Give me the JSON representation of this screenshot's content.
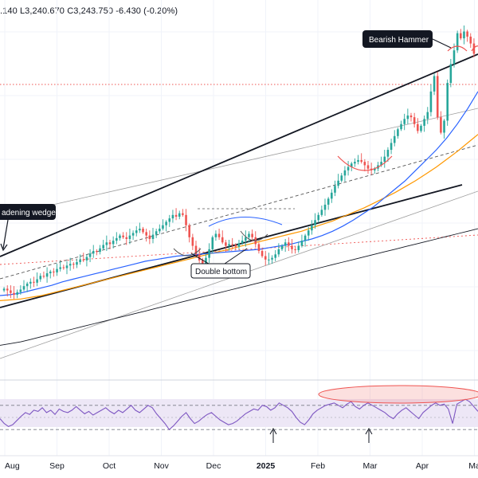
{
  "ohlc_header": {
    "high_fragment": ".140",
    "low": "L3,240.670",
    "close": "C3,243.750",
    "change": "-6.430 (-0.20%)"
  },
  "annotations": {
    "broadening_wedge": "adening wedge",
    "bearish_hammer": "Bearish Hammer",
    "double_bottom": "Double bottom"
  },
  "colors": {
    "bull": "#26a69a",
    "bear": "#ef5350",
    "ma_blue": "#2962ff",
    "ma_orange": "#ff9800",
    "ma_black": "#131722",
    "wedge_line": "#131722",
    "rsi_line": "#7e57c2",
    "rsi_band": "#ede7f6",
    "resistance_dotted": "#ef5350",
    "highlight_ellipse": "#ef5350"
  },
  "chart_data": {
    "type": "candlestick",
    "x_ticks": [
      "Aug",
      "Sep",
      "Oct",
      "Nov",
      "Dec",
      "2025",
      "Feb",
      "Mar",
      "Apr",
      "Ma"
    ],
    "x_ticks_bold": [
      "2025"
    ],
    "close": [
      100,
      98,
      95,
      93,
      96,
      99,
      103,
      106,
      108,
      107,
      111,
      115,
      114,
      118,
      120,
      119,
      123,
      125,
      124,
      127,
      129,
      128,
      131,
      134,
      133,
      137,
      141,
      144,
      143,
      147,
      151,
      154,
      152,
      156,
      159,
      162,
      160,
      158,
      162,
      165,
      168,
      170,
      166,
      162,
      158,
      163,
      167,
      170,
      174,
      178,
      182,
      186,
      184,
      188,
      186,
      174,
      160,
      150,
      140,
      133,
      128,
      136,
      146,
      160,
      164,
      160,
      154,
      150,
      152,
      151,
      149,
      153,
      156,
      160,
      164,
      160,
      152,
      144,
      138,
      134,
      134,
      136,
      140,
      146,
      150,
      154,
      150,
      146,
      145,
      150,
      156,
      162,
      168,
      174,
      180,
      186,
      192,
      198,
      205,
      212,
      220,
      226,
      232,
      238,
      242,
      246,
      248,
      250,
      248,
      244,
      240,
      238,
      240,
      244,
      248,
      254,
      262,
      270,
      278,
      286,
      292,
      298,
      302,
      300,
      292,
      284,
      290,
      298,
      306,
      330,
      348,
      300,
      282,
      296,
      340,
      362,
      378,
      398,
      392,
      400,
      394,
      386,
      374
    ],
    "ma_blue": [
      92,
      93,
      95,
      98,
      101,
      104,
      108,
      111,
      114,
      117,
      120,
      123,
      126,
      129,
      132,
      134,
      136,
      138,
      139,
      140,
      141,
      142,
      143,
      144,
      145,
      146,
      148,
      150,
      152,
      155,
      158,
      162,
      167,
      173,
      180,
      188,
      196,
      206,
      216,
      226,
      238,
      250,
      262,
      276,
      292,
      310,
      330
    ],
    "ma_orange": [
      86,
      87,
      88,
      90,
      92,
      95,
      98,
      101,
      104,
      107,
      110,
      113,
      116,
      119,
      122,
      125,
      128,
      131,
      134,
      137,
      140,
      143,
      146,
      149,
      152,
      155,
      158,
      161,
      164,
      167,
      171,
      175,
      179,
      184,
      189,
      194,
      200,
      206,
      212,
      219,
      226,
      234,
      242,
      251,
      260,
      270,
      280
    ],
    "ma_black": [
      34,
      36,
      38,
      41,
      44,
      47,
      50,
      53,
      56,
      59,
      62,
      65,
      68,
      71,
      74,
      77,
      80,
      83,
      86,
      89,
      92,
      95,
      98,
      101,
      104,
      107,
      110,
      113,
      116,
      119,
      122,
      125,
      128,
      131,
      134,
      137,
      140,
      143,
      146,
      149,
      152,
      155,
      158,
      161,
      164,
      167,
      170
    ],
    "rsi": [
      48,
      40,
      35,
      38,
      45,
      52,
      58,
      55,
      62,
      60,
      66,
      58,
      62,
      55,
      64,
      60,
      58,
      62,
      68,
      62,
      56,
      60,
      54,
      58,
      62,
      66,
      60,
      56,
      62,
      58,
      64,
      70,
      62,
      58,
      64,
      70,
      66,
      56,
      48,
      40,
      30,
      36,
      44,
      52,
      58,
      48,
      40,
      44,
      50,
      55,
      58,
      52,
      46,
      42,
      38,
      40,
      44,
      50,
      56,
      60,
      64,
      62,
      70,
      68,
      62,
      66,
      74,
      70,
      66,
      60,
      50,
      42,
      38,
      46,
      56,
      62,
      66,
      70,
      72,
      74,
      70,
      66,
      72,
      76,
      68,
      64,
      70,
      74,
      70,
      66,
      62,
      58,
      52,
      48,
      56,
      62,
      66,
      60,
      54,
      48,
      58,
      64,
      70,
      74,
      70,
      72,
      64,
      40,
      72,
      76,
      80,
      76,
      68,
      60
    ],
    "rsi_levels": [
      70,
      50,
      30
    ],
    "rsi_markers": [
      "up-arrow",
      "up-arrow"
    ]
  }
}
